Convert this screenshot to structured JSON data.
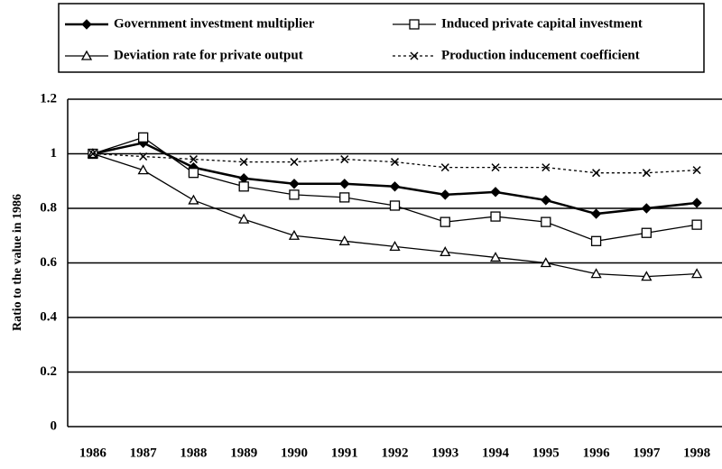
{
  "chart_data": {
    "type": "line",
    "y_label": "Ratio to the value in 1986",
    "categories": [
      "1986",
      "1987",
      "1988",
      "1989",
      "1990",
      "1991",
      "1992",
      "1993",
      "1994",
      "1995",
      "1996",
      "1997",
      "1998"
    ],
    "series": [
      {
        "name": "Government investment multiplier",
        "color": "#000000",
        "marker": "diamond",
        "dashed": false,
        "values": [
          1,
          1.04,
          0.95,
          0.91,
          0.89,
          0.89,
          0.88,
          0.85,
          0.86,
          0.83,
          0.78,
          0.8,
          0.82
        ]
      },
      {
        "name": "Induced private capital investment",
        "color": "#000000",
        "marker": "square",
        "dashed": false,
        "values": [
          1,
          1.06,
          0.93,
          0.88,
          0.85,
          0.84,
          0.81,
          0.75,
          0.77,
          0.75,
          0.68,
          0.71,
          0.74
        ]
      },
      {
        "name": "Deviation rate for private output",
        "color": "#000000",
        "marker": "triangle",
        "dashed": false,
        "values": [
          1,
          0.94,
          0.83,
          0.76,
          0.7,
          0.68,
          0.66,
          0.64,
          0.62,
          0.6,
          0.56,
          0.55,
          0.56
        ]
      },
      {
        "name": "Production inducement coefficient",
        "color": "#000000",
        "marker": "cross",
        "dashed": true,
        "values": [
          1,
          0.99,
          0.98,
          0.97,
          0.97,
          0.98,
          0.97,
          0.95,
          0.95,
          0.95,
          0.93,
          0.93,
          0.94
        ]
      }
    ],
    "ylim": [
      0,
      1.2
    ],
    "yticks": [
      0,
      0.2,
      0.4,
      0.6,
      0.8,
      1,
      1.2
    ],
    "grid": true,
    "legend": "top"
  }
}
